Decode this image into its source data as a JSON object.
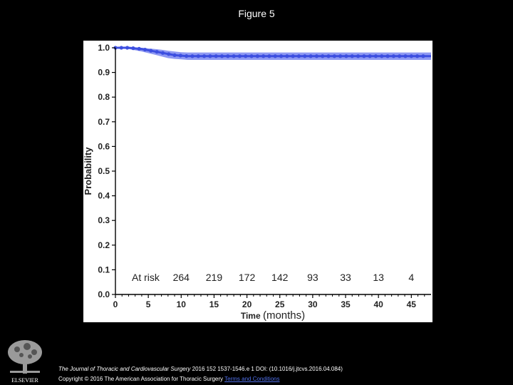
{
  "slide": {
    "title": "Figure 5",
    "citation_journal": "The Journal of Thoracic and Cardiovascular Surgery",
    "citation_rest": " 2016 152 1537-1546.e 1 DOI: (10.1016/j.jtcvs.2016.04.084)",
    "copyright": "Copyright © 2016 The American Association for Thoracic Surgery ",
    "terms_link": "Terms and Conditions",
    "logo_text": "ELSEVIER"
  },
  "chart_data": {
    "type": "line",
    "title": "",
    "xlabel_main": "Time",
    "xlabel_unit": "(months)",
    "ylabel": "Probability",
    "xlim": [
      0,
      48
    ],
    "ylim": [
      0,
      1.0
    ],
    "x_ticks": [
      0,
      5,
      10,
      15,
      20,
      25,
      30,
      35,
      40,
      45
    ],
    "x_tick_labels": [
      "0",
      "5",
      "10",
      "15",
      "20",
      "25",
      "30",
      "35",
      "40",
      "45"
    ],
    "y_ticks": [
      0,
      0.1,
      0.2,
      0.3,
      0.4,
      0.5,
      0.6,
      0.7,
      0.8,
      0.9,
      1.0
    ],
    "y_tick_labels": [
      "0.0",
      "0.1",
      "0.2",
      "0.3",
      "0.4",
      "0.5",
      "0.6",
      "0.7",
      "0.8",
      "0.9",
      "1.0"
    ],
    "series": [
      {
        "color": "#3d4fe0",
        "band_color": "#8f99f2",
        "x": [
          0,
          2,
          4,
          6,
          7,
          8,
          9,
          10,
          11,
          48
        ],
        "y": [
          1.0,
          1.0,
          0.995,
          0.985,
          0.98,
          0.975,
          0.97,
          0.968,
          0.966,
          0.966
        ],
        "lower": [
          1.0,
          0.995,
          0.985,
          0.972,
          0.965,
          0.958,
          0.955,
          0.953,
          0.951,
          0.951
        ],
        "upper": [
          1.0,
          1.0,
          1.0,
          0.995,
          0.992,
          0.988,
          0.985,
          0.982,
          0.981,
          0.981
        ]
      }
    ],
    "at_risk": {
      "label": "At risk",
      "x": [
        10,
        15,
        20,
        25,
        30,
        35,
        40,
        45
      ],
      "counts": [
        "264",
        "219",
        "172",
        "142",
        "93",
        "33",
        "13",
        "4"
      ]
    },
    "grid": false
  }
}
